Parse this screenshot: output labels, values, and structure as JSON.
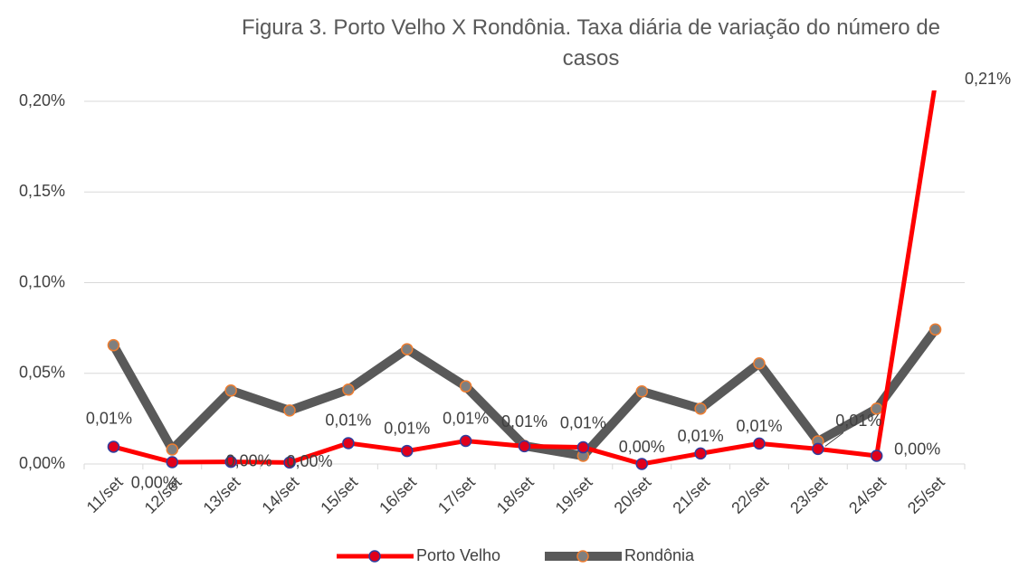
{
  "chart_data": {
    "type": "line",
    "title": "Figura 3. Porto Velho X Rondônia. Taxa diária de variação do número de casos",
    "categories": [
      "11/set",
      "12/set",
      "13/set",
      "14/set",
      "15/set",
      "16/set",
      "17/set",
      "18/set",
      "19/set",
      "20/set",
      "21/set",
      "22/set",
      "23/set",
      "24/set",
      "25/set"
    ],
    "series": [
      {
        "name": "Porto Velho",
        "color": "#ff0000",
        "marker_color": "#e0001b",
        "values": [
          0.0095,
          0.001,
          0.0012,
          0.0008,
          0.0115,
          0.0072,
          0.0127,
          0.0098,
          0.0092,
          0.0,
          0.0058,
          0.0113,
          0.0083,
          0.0045,
          0.21
        ],
        "value_labels": [
          "0,01%",
          "0,00%",
          "0,00%",
          "0,00%",
          "0,01%",
          "0,01%",
          "0,01%",
          "0,01%",
          "0,01%",
          "0,00%",
          "0,01%",
          "0,01%",
          "0,01%",
          "0,00%",
          "0,21%"
        ]
      },
      {
        "name": "Rondônia",
        "color": "#595959",
        "marker_color": "#7f7f7f",
        "values": [
          0.0655,
          0.008,
          0.0405,
          0.0295,
          0.041,
          0.0633,
          0.0428,
          0.01,
          0.0045,
          0.04,
          0.0305,
          0.0555,
          0.0125,
          0.0305,
          0.0742
        ]
      }
    ],
    "ylim": [
      0,
      0.2
    ],
    "yticks": [
      {
        "value": 0,
        "label": "0,00%"
      },
      {
        "value": 0.05,
        "label": "0,05%"
      },
      {
        "value": 0.1,
        "label": "0,10%"
      },
      {
        "value": 0.15,
        "label": "0,15%"
      },
      {
        "value": 0.2,
        "label": "0,20%"
      }
    ],
    "grid": true,
    "legend": "bottom"
  }
}
